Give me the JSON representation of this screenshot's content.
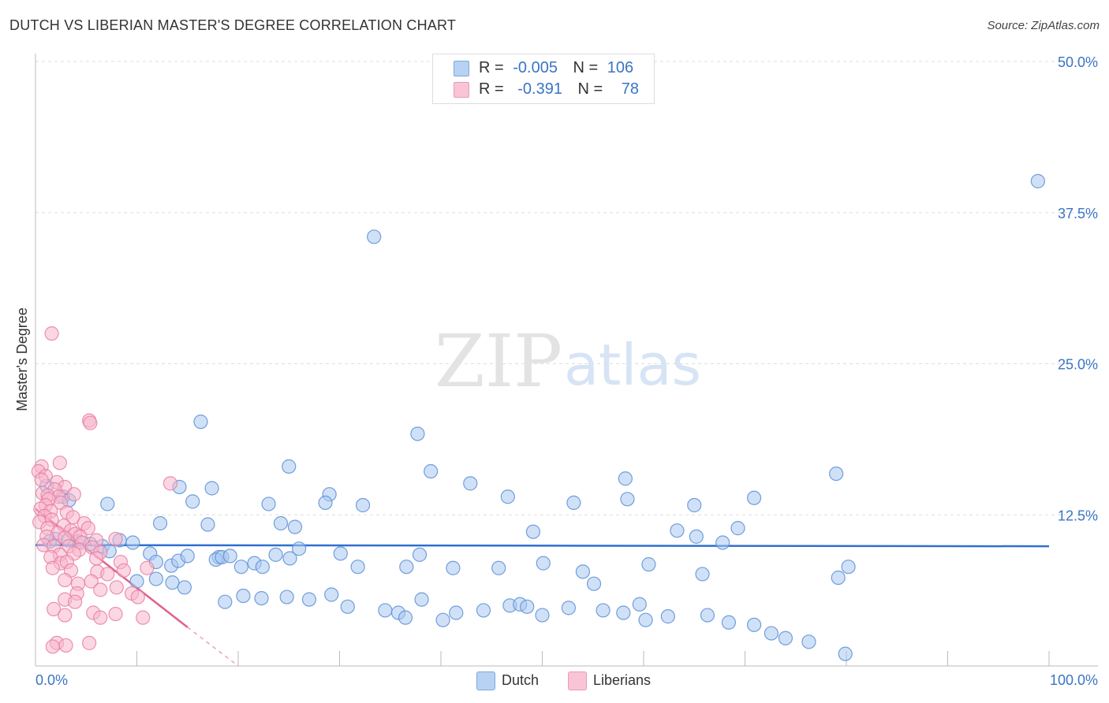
{
  "title": "DUTCH VS LIBERIAN MASTER'S DEGREE CORRELATION CHART",
  "source": "Source: ZipAtlas.com",
  "watermark": {
    "zip": "ZIP",
    "atlas": "atlas"
  },
  "legend_top": {
    "rows": [
      {
        "r_label": "R =",
        "r_value": "-0.005",
        "n_label": "N =",
        "n_value": "106"
      },
      {
        "r_label": "R =",
        "r_value": "-0.391",
        "n_label": "N =",
        "n_value": "78"
      }
    ]
  },
  "colors": {
    "dutch_fill": "#a9c8f0",
    "dutch_stroke": "#5b8fd6",
    "dutch_line": "#2f6fd0",
    "liberian_fill": "#f7b6cc",
    "liberian_stroke": "#e77fa2",
    "liberian_line": "#e06090",
    "tick_label": "#3a75c4",
    "grid": "#dddddd"
  },
  "chart_data": {
    "type": "scatter",
    "title": "DUTCH VS LIBERIAN MASTER'S DEGREE CORRELATION CHART",
    "xlabel": "",
    "ylabel": "Master's Degree",
    "xlim": [
      0,
      100
    ],
    "ylim": [
      0,
      50
    ],
    "x_tick_labels": [
      "0.0%",
      "100.0%"
    ],
    "y_ticks": [
      12.5,
      25.0,
      37.5,
      50.0
    ],
    "y_tick_labels": [
      "12.5%",
      "25.0%",
      "37.5%",
      "50.0%"
    ],
    "legend": [
      "Dutch",
      "Liberians"
    ],
    "series": [
      {
        "name": "Dutch",
        "r": -0.005,
        "n": 106,
        "trend": {
          "x": [
            0,
            100
          ],
          "y": [
            10.0,
            9.9
          ]
        },
        "points": [
          [
            98.9,
            40.1
          ],
          [
            33.4,
            35.5
          ],
          [
            16.3,
            20.2
          ],
          [
            37.7,
            19.2
          ],
          [
            25.0,
            16.5
          ],
          [
            39.0,
            16.1
          ],
          [
            58.2,
            15.5
          ],
          [
            79.0,
            15.9
          ],
          [
            42.9,
            15.1
          ],
          [
            14.2,
            14.8
          ],
          [
            17.4,
            14.7
          ],
          [
            29.0,
            14.2
          ],
          [
            46.6,
            14.0
          ],
          [
            28.6,
            13.5
          ],
          [
            53.1,
            13.5
          ],
          [
            70.9,
            13.9
          ],
          [
            7.1,
            13.4
          ],
          [
            15.5,
            13.6
          ],
          [
            23.0,
            13.4
          ],
          [
            32.3,
            13.3
          ],
          [
            58.4,
            13.8
          ],
          [
            65.0,
            13.3
          ],
          [
            2.7,
            14.0
          ],
          [
            1.1,
            14.9
          ],
          [
            3.3,
            13.7
          ],
          [
            24.2,
            11.8
          ],
          [
            25.6,
            11.5
          ],
          [
            17.0,
            11.7
          ],
          [
            12.3,
            11.8
          ],
          [
            49.1,
            11.1
          ],
          [
            63.3,
            11.2
          ],
          [
            65.2,
            10.7
          ],
          [
            69.3,
            11.4
          ],
          [
            8.3,
            10.4
          ],
          [
            9.6,
            10.2
          ],
          [
            4.3,
            10.3
          ],
          [
            5.4,
            10.1
          ],
          [
            3.2,
            10.4
          ],
          [
            2.0,
            10.5
          ],
          [
            1.4,
            10.3
          ],
          [
            6.6,
            9.9
          ],
          [
            7.3,
            9.5
          ],
          [
            11.3,
            9.3
          ],
          [
            11.9,
            8.6
          ],
          [
            13.4,
            8.3
          ],
          [
            14.1,
            8.7
          ],
          [
            15.0,
            9.1
          ],
          [
            18.1,
            9.0
          ],
          [
            17.8,
            8.8
          ],
          [
            18.4,
            9.0
          ],
          [
            19.2,
            9.1
          ],
          [
            20.3,
            8.2
          ],
          [
            21.6,
            8.5
          ],
          [
            22.4,
            8.2
          ],
          [
            23.7,
            9.2
          ],
          [
            25.1,
            8.9
          ],
          [
            26.0,
            9.7
          ],
          [
            30.1,
            9.3
          ],
          [
            31.8,
            8.2
          ],
          [
            37.9,
            9.2
          ],
          [
            36.6,
            8.2
          ],
          [
            41.2,
            8.1
          ],
          [
            45.7,
            8.1
          ],
          [
            50.1,
            8.5
          ],
          [
            54.0,
            7.8
          ],
          [
            55.1,
            6.8
          ],
          [
            60.5,
            8.4
          ],
          [
            65.8,
            7.6
          ],
          [
            67.8,
            10.2
          ],
          [
            80.2,
            8.2
          ],
          [
            79.2,
            7.3
          ],
          [
            10.0,
            7.0
          ],
          [
            11.9,
            7.2
          ],
          [
            13.5,
            6.9
          ],
          [
            14.7,
            6.5
          ],
          [
            18.7,
            5.3
          ],
          [
            20.5,
            5.8
          ],
          [
            22.3,
            5.6
          ],
          [
            24.8,
            5.7
          ],
          [
            27.0,
            5.5
          ],
          [
            29.2,
            5.9
          ],
          [
            30.8,
            4.9
          ],
          [
            34.5,
            4.6
          ],
          [
            35.8,
            4.4
          ],
          [
            36.5,
            4.0
          ],
          [
            38.1,
            5.5
          ],
          [
            40.2,
            3.8
          ],
          [
            41.5,
            4.4
          ],
          [
            44.2,
            4.6
          ],
          [
            46.8,
            5.0
          ],
          [
            47.8,
            5.1
          ],
          [
            48.5,
            4.9
          ],
          [
            50.0,
            4.2
          ],
          [
            52.6,
            4.8
          ],
          [
            56.0,
            4.6
          ],
          [
            58.0,
            4.4
          ],
          [
            59.6,
            5.1
          ],
          [
            60.2,
            3.8
          ],
          [
            62.4,
            4.1
          ],
          [
            66.3,
            4.2
          ],
          [
            68.4,
            3.6
          ],
          [
            70.9,
            3.4
          ],
          [
            72.6,
            2.7
          ],
          [
            74.0,
            2.3
          ],
          [
            76.3,
            2.0
          ],
          [
            79.9,
            1.0
          ]
        ]
      },
      {
        "name": "Liberians",
        "r": -0.391,
        "n": 78,
        "trend": {
          "x": [
            0,
            15
          ],
          "y": [
            13.0,
            3.2
          ]
        },
        "trend_dashed": {
          "x": [
            15,
            20
          ],
          "y": [
            3.2,
            0
          ]
        },
        "points": [
          [
            1.6,
            27.5
          ],
          [
            5.3,
            20.3
          ],
          [
            5.4,
            20.1
          ],
          [
            13.3,
            15.1
          ],
          [
            2.4,
            16.8
          ],
          [
            0.6,
            16.5
          ],
          [
            0.3,
            16.1
          ],
          [
            1.0,
            15.7
          ],
          [
            0.6,
            15.4
          ],
          [
            2.1,
            15.2
          ],
          [
            2.9,
            14.8
          ],
          [
            1.9,
            14.6
          ],
          [
            0.7,
            14.3
          ],
          [
            1.2,
            14.1
          ],
          [
            2.3,
            14.0
          ],
          [
            3.8,
            14.2
          ],
          [
            1.3,
            13.8
          ],
          [
            2.5,
            13.5
          ],
          [
            1.0,
            13.3
          ],
          [
            0.5,
            13.0
          ],
          [
            1.5,
            12.8
          ],
          [
            3.1,
            12.7
          ],
          [
            0.9,
            12.4
          ],
          [
            3.7,
            12.3
          ],
          [
            1.6,
            12.1
          ],
          [
            0.4,
            11.9
          ],
          [
            2.8,
            11.6
          ],
          [
            4.8,
            11.8
          ],
          [
            1.2,
            11.4
          ],
          [
            3.5,
            11.2
          ],
          [
            5.2,
            11.4
          ],
          [
            2.2,
            11.0
          ],
          [
            3.9,
            10.9
          ],
          [
            1.1,
            10.7
          ],
          [
            4.4,
            10.7
          ],
          [
            6.0,
            10.4
          ],
          [
            2.9,
            10.6
          ],
          [
            4.6,
            10.2
          ],
          [
            7.9,
            10.5
          ],
          [
            0.8,
            10.0
          ],
          [
            1.8,
            9.9
          ],
          [
            3.3,
            9.9
          ],
          [
            5.6,
            9.8
          ],
          [
            4.3,
            9.6
          ],
          [
            6.4,
            9.4
          ],
          [
            2.4,
            9.2
          ],
          [
            3.8,
            9.3
          ],
          [
            1.5,
            9.0
          ],
          [
            6.0,
            8.9
          ],
          [
            8.4,
            8.6
          ],
          [
            2.5,
            8.5
          ],
          [
            3.1,
            8.6
          ],
          [
            11.0,
            8.1
          ],
          [
            1.7,
            8.1
          ],
          [
            3.5,
            7.9
          ],
          [
            6.1,
            7.8
          ],
          [
            8.7,
            7.9
          ],
          [
            7.1,
            7.6
          ],
          [
            2.9,
            7.1
          ],
          [
            5.5,
            7.0
          ],
          [
            4.2,
            6.8
          ],
          [
            8.0,
            6.5
          ],
          [
            6.4,
            6.3
          ],
          [
            4.1,
            6.0
          ],
          [
            9.5,
            6.0
          ],
          [
            10.1,
            5.7
          ],
          [
            2.9,
            5.5
          ],
          [
            3.9,
            5.3
          ],
          [
            1.8,
            4.7
          ],
          [
            5.7,
            4.4
          ],
          [
            7.9,
            4.3
          ],
          [
            2.9,
            4.2
          ],
          [
            6.4,
            4.0
          ],
          [
            10.6,
            4.0
          ],
          [
            2.1,
            1.9
          ],
          [
            5.3,
            1.9
          ],
          [
            1.7,
            1.6
          ],
          [
            3.0,
            1.7
          ]
        ]
      }
    ]
  }
}
